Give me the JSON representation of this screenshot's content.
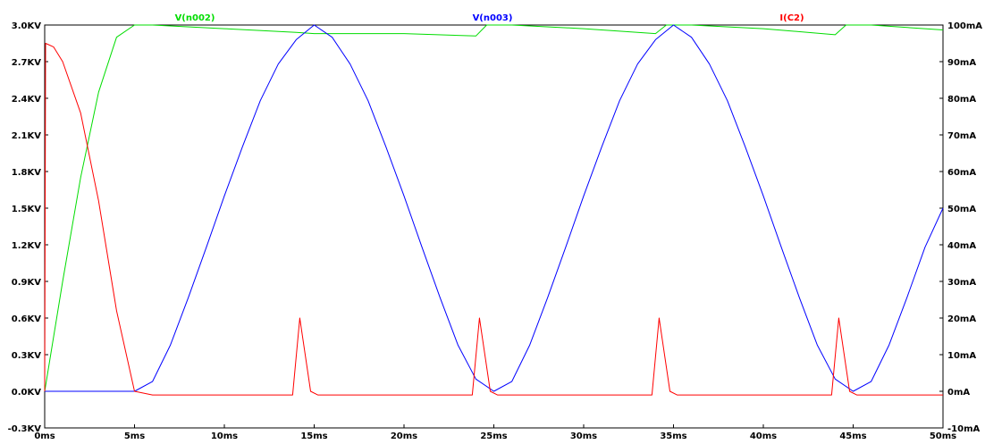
{
  "chart_data": {
    "type": "line",
    "title": "",
    "xlabel": "",
    "ylabel": "",
    "xlim": [
      0,
      50
    ],
    "ylim_left": [
      -0.3,
      3.0
    ],
    "ylim_right": [
      -10,
      100
    ],
    "grid": false,
    "x_ticks": [
      "0ms",
      "5ms",
      "10ms",
      "15ms",
      "20ms",
      "25ms",
      "30ms",
      "35ms",
      "40ms",
      "45ms",
      "50ms"
    ],
    "y_ticks_left": [
      "3.0KV",
      "2.7KV",
      "2.4KV",
      "2.1KV",
      "1.8KV",
      "1.5KV",
      "1.2KV",
      "0.9KV",
      "0.6KV",
      "0.3KV",
      "0.0KV",
      "-0.3KV"
    ],
    "y_ticks_right": [
      "100mA",
      "90mA",
      "80mA",
      "70mA",
      "60mA",
      "50mA",
      "40mA",
      "30mA",
      "20mA",
      "10mA",
      "0mA",
      "-10mA"
    ],
    "series": [
      {
        "name": "V(n002)",
        "color": "#00dd00",
        "axis": "left",
        "points": [
          [
            0,
            0
          ],
          [
            1,
            0.9
          ],
          [
            2,
            1.75
          ],
          [
            3,
            2.45
          ],
          [
            4,
            2.9
          ],
          [
            5,
            3.0
          ],
          [
            6,
            3.0
          ],
          [
            10,
            2.97
          ],
          [
            14,
            2.94
          ],
          [
            15,
            2.93
          ],
          [
            20,
            2.93
          ],
          [
            24,
            2.91
          ],
          [
            24.6,
            3.0
          ],
          [
            26,
            3.0
          ],
          [
            30,
            2.97
          ],
          [
            34,
            2.93
          ],
          [
            34.6,
            3.0
          ],
          [
            36,
            3.0
          ],
          [
            40,
            2.97
          ],
          [
            44,
            2.92
          ],
          [
            44.6,
            3.0
          ],
          [
            46,
            3.0
          ],
          [
            50,
            2.96
          ]
        ]
      },
      {
        "name": "V(n003)",
        "color": "#0000ff",
        "axis": "left",
        "points": [
          [
            0,
            0
          ],
          [
            5,
            0
          ],
          [
            6,
            0.08
          ],
          [
            7,
            0.38
          ],
          [
            8,
            0.77
          ],
          [
            9,
            1.18
          ],
          [
            10,
            1.6
          ],
          [
            11,
            2.0
          ],
          [
            12,
            2.38
          ],
          [
            13,
            2.68
          ],
          [
            14,
            2.88
          ],
          [
            15,
            3.0
          ],
          [
            16,
            2.9
          ],
          [
            17,
            2.68
          ],
          [
            18,
            2.38
          ],
          [
            19,
            2.0
          ],
          [
            20,
            1.6
          ],
          [
            21,
            1.18
          ],
          [
            22,
            0.77
          ],
          [
            23,
            0.38
          ],
          [
            24,
            0.1
          ],
          [
            25,
            0.0
          ],
          [
            26,
            0.08
          ],
          [
            27,
            0.38
          ],
          [
            28,
            0.77
          ],
          [
            29,
            1.18
          ],
          [
            30,
            1.6
          ],
          [
            31,
            2.0
          ],
          [
            32,
            2.38
          ],
          [
            33,
            2.68
          ],
          [
            34,
            2.88
          ],
          [
            35,
            3.0
          ],
          [
            36,
            2.9
          ],
          [
            37,
            2.68
          ],
          [
            38,
            2.38
          ],
          [
            39,
            2.0
          ],
          [
            40,
            1.6
          ],
          [
            41,
            1.18
          ],
          [
            42,
            0.77
          ],
          [
            43,
            0.38
          ],
          [
            44,
            0.1
          ],
          [
            45,
            0.0
          ],
          [
            46,
            0.08
          ],
          [
            47,
            0.38
          ],
          [
            48,
            0.77
          ],
          [
            49,
            1.18
          ],
          [
            50,
            1.5
          ]
        ]
      },
      {
        "name": "I(C2)",
        "color": "#ff0000",
        "axis": "right",
        "points": [
          [
            0,
            0
          ],
          [
            0.05,
            95
          ],
          [
            0.5,
            94
          ],
          [
            1,
            90
          ],
          [
            2,
            76
          ],
          [
            3,
            52
          ],
          [
            4,
            22
          ],
          [
            5,
            0
          ],
          [
            6,
            -1
          ],
          [
            13.8,
            -1
          ],
          [
            14.2,
            20
          ],
          [
            14.8,
            0
          ],
          [
            15.2,
            -1
          ],
          [
            23.8,
            -1
          ],
          [
            24.2,
            20
          ],
          [
            24.8,
            0
          ],
          [
            25.2,
            -1
          ],
          [
            33.8,
            -1
          ],
          [
            34.2,
            20
          ],
          [
            34.8,
            0
          ],
          [
            35.2,
            -1
          ],
          [
            43.8,
            -1
          ],
          [
            44.2,
            20
          ],
          [
            44.8,
            0
          ],
          [
            45.2,
            -1
          ],
          [
            50,
            -1
          ]
        ]
      }
    ]
  }
}
